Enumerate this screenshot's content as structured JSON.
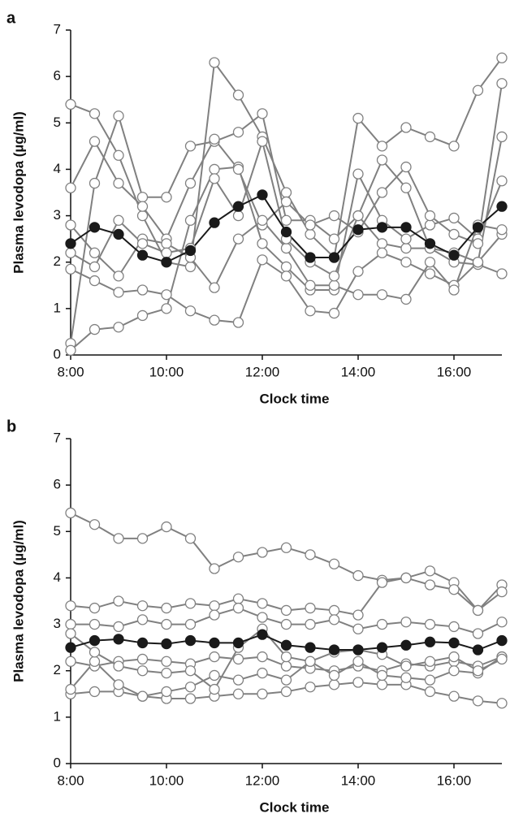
{
  "chart_data": [
    {
      "type": "line",
      "panel_label": "a",
      "y_label": "Plasma levodopa (µg/ml)",
      "x_label": "Clock time",
      "categories": [
        "8:00",
        null,
        null,
        null,
        "10:00",
        null,
        null,
        null,
        "12:00",
        null,
        null,
        null,
        "14:00",
        null,
        null,
        null,
        "16:00",
        null,
        null
      ],
      "ylim": [
        0,
        7
      ],
      "yticks": [
        0,
        1,
        2,
        3,
        4,
        5,
        6,
        7
      ],
      "series": [
        {
          "color": "#808080",
          "marker_face": "#ffffff",
          "values": [
            5.4,
            5.2,
            4.3,
            3.0,
            2.0,
            1.9,
            6.3,
            5.6,
            4.7,
            3.5,
            2.6,
            2.1,
            5.1,
            4.5,
            4.9,
            4.7,
            4.5,
            5.7,
            6.4
          ]
        },
        {
          "color": "#808080",
          "marker_face": "#ffffff",
          "values": [
            0.25,
            3.7,
            5.15,
            3.4,
            3.4,
            4.5,
            4.6,
            4.8,
            5.2,
            2.9,
            2.9,
            2.5,
            3.0,
            2.4,
            2.3,
            2.3,
            2.0,
            1.95,
            1.75
          ]
        },
        {
          "color": "#808080",
          "marker_face": "#ffffff",
          "values": [
            0.1,
            0.55,
            0.6,
            0.85,
            1.0,
            2.9,
            4.0,
            4.05,
            2.4,
            1.9,
            1.4,
            1.4,
            3.9,
            2.9,
            2.5,
            2.8,
            2.95,
            2.5,
            3.75
          ]
        },
        {
          "color": "#808080",
          "marker_face": "#ffffff",
          "values": [
            1.85,
            1.6,
            1.35,
            1.4,
            1.3,
            0.95,
            0.75,
            0.7,
            2.05,
            1.7,
            0.95,
            0.9,
            1.8,
            2.2,
            2.0,
            1.75,
            1.5,
            2.0,
            2.6
          ]
        },
        {
          "color": "#808080",
          "marker_face": "#ffffff",
          "values": [
            3.6,
            4.6,
            3.7,
            3.2,
            2.5,
            3.7,
            4.65,
            4.0,
            2.8,
            3.3,
            2.8,
            3.0,
            2.65,
            3.5,
            4.05,
            3.0,
            2.6,
            2.4,
            5.85
          ]
        },
        {
          "color": "#808080",
          "marker_face": "#ffffff",
          "values": [
            2.8,
            2.2,
            1.7,
            2.5,
            2.4,
            2.1,
            1.45,
            2.5,
            2.9,
            2.3,
            1.5,
            1.5,
            1.3,
            1.3,
            1.2,
            2.0,
            1.4,
            2.8,
            2.7
          ]
        },
        {
          "color": "#808080",
          "marker_face": "#ffffff",
          "values": [
            2.2,
            1.9,
            2.9,
            2.4,
            2.2,
            2.3,
            3.8,
            3.0,
            4.6,
            2.5,
            2.0,
            1.7,
            3.0,
            4.2,
            3.6,
            2.3,
            2.2,
            2.0,
            4.7
          ]
        },
        {
          "color": "#1a1a1a",
          "marker_face": "#1a1a1a",
          "values": [
            2.4,
            2.75,
            2.6,
            2.15,
            2.0,
            2.25,
            2.85,
            3.2,
            3.45,
            2.65,
            2.1,
            2.1,
            2.7,
            2.75,
            2.75,
            2.4,
            2.15,
            2.75,
            3.2
          ]
        }
      ]
    },
    {
      "type": "line",
      "panel_label": "b",
      "y_label": "Plasma levodopa (µg/ml)",
      "x_label": "Clock time",
      "categories": [
        "8:00",
        null,
        null,
        null,
        "10:00",
        null,
        null,
        null,
        "12:00",
        null,
        null,
        null,
        "14:00",
        null,
        null,
        null,
        "16:00",
        null,
        null
      ],
      "ylim": [
        0,
        7
      ],
      "yticks": [
        0,
        1,
        2,
        3,
        4,
        5,
        6,
        7
      ],
      "series": [
        {
          "color": "#808080",
          "marker_face": "#ffffff",
          "values": [
            5.4,
            5.15,
            4.85,
            4.85,
            5.1,
            4.85,
            4.2,
            4.45,
            4.55,
            4.65,
            4.5,
            4.3,
            4.05,
            3.95,
            4.0,
            4.15,
            3.9,
            3.3,
            3.85
          ]
        },
        {
          "color": "#808080",
          "marker_face": "#ffffff",
          "values": [
            1.5,
            1.55,
            1.55,
            1.45,
            1.4,
            1.4,
            1.45,
            1.5,
            1.5,
            1.55,
            1.65,
            1.7,
            1.75,
            1.7,
            1.7,
            1.55,
            1.45,
            1.35,
            1.3
          ]
        },
        {
          "color": "#808080",
          "marker_face": "#ffffff",
          "values": [
            3.4,
            3.35,
            3.5,
            3.4,
            3.35,
            3.45,
            3.4,
            3.55,
            3.45,
            3.3,
            3.35,
            3.3,
            3.2,
            3.9,
            4.0,
            3.85,
            3.75,
            3.3,
            3.7
          ]
        },
        {
          "color": "#808080",
          "marker_face": "#ffffff",
          "values": [
            2.2,
            2.1,
            2.2,
            2.25,
            2.2,
            2.15,
            2.3,
            2.25,
            2.3,
            2.1,
            2.05,
            2.0,
            2.1,
            2.0,
            2.15,
            2.1,
            2.2,
            2.1,
            2.3
          ]
        },
        {
          "color": "#808080",
          "marker_face": "#ffffff",
          "values": [
            1.6,
            2.2,
            1.7,
            1.45,
            1.55,
            1.65,
            1.9,
            1.8,
            1.95,
            1.8,
            2.2,
            1.9,
            2.2,
            1.9,
            1.85,
            1.8,
            2.0,
            1.95,
            2.3
          ]
        },
        {
          "color": "#808080",
          "marker_face": "#ffffff",
          "values": [
            3.0,
            3.0,
            2.95,
            3.1,
            3.0,
            3.0,
            3.2,
            3.35,
            3.15,
            3.0,
            3.0,
            3.1,
            2.9,
            3.0,
            3.05,
            3.0,
            2.95,
            2.8,
            3.05
          ]
        },
        {
          "color": "#808080",
          "marker_face": "#ffffff",
          "values": [
            2.8,
            2.4,
            2.1,
            2.0,
            1.95,
            2.0,
            1.6,
            2.5,
            2.9,
            2.3,
            2.2,
            2.4,
            2.45,
            2.35,
            2.1,
            2.2,
            2.3,
            2.0,
            2.25
          ]
        },
        {
          "color": "#1a1a1a",
          "marker_face": "#1a1a1a",
          "values": [
            2.5,
            2.65,
            2.68,
            2.6,
            2.58,
            2.65,
            2.6,
            2.6,
            2.78,
            2.55,
            2.5,
            2.45,
            2.45,
            2.5,
            2.55,
            2.62,
            2.6,
            2.45,
            2.65
          ]
        }
      ]
    }
  ]
}
